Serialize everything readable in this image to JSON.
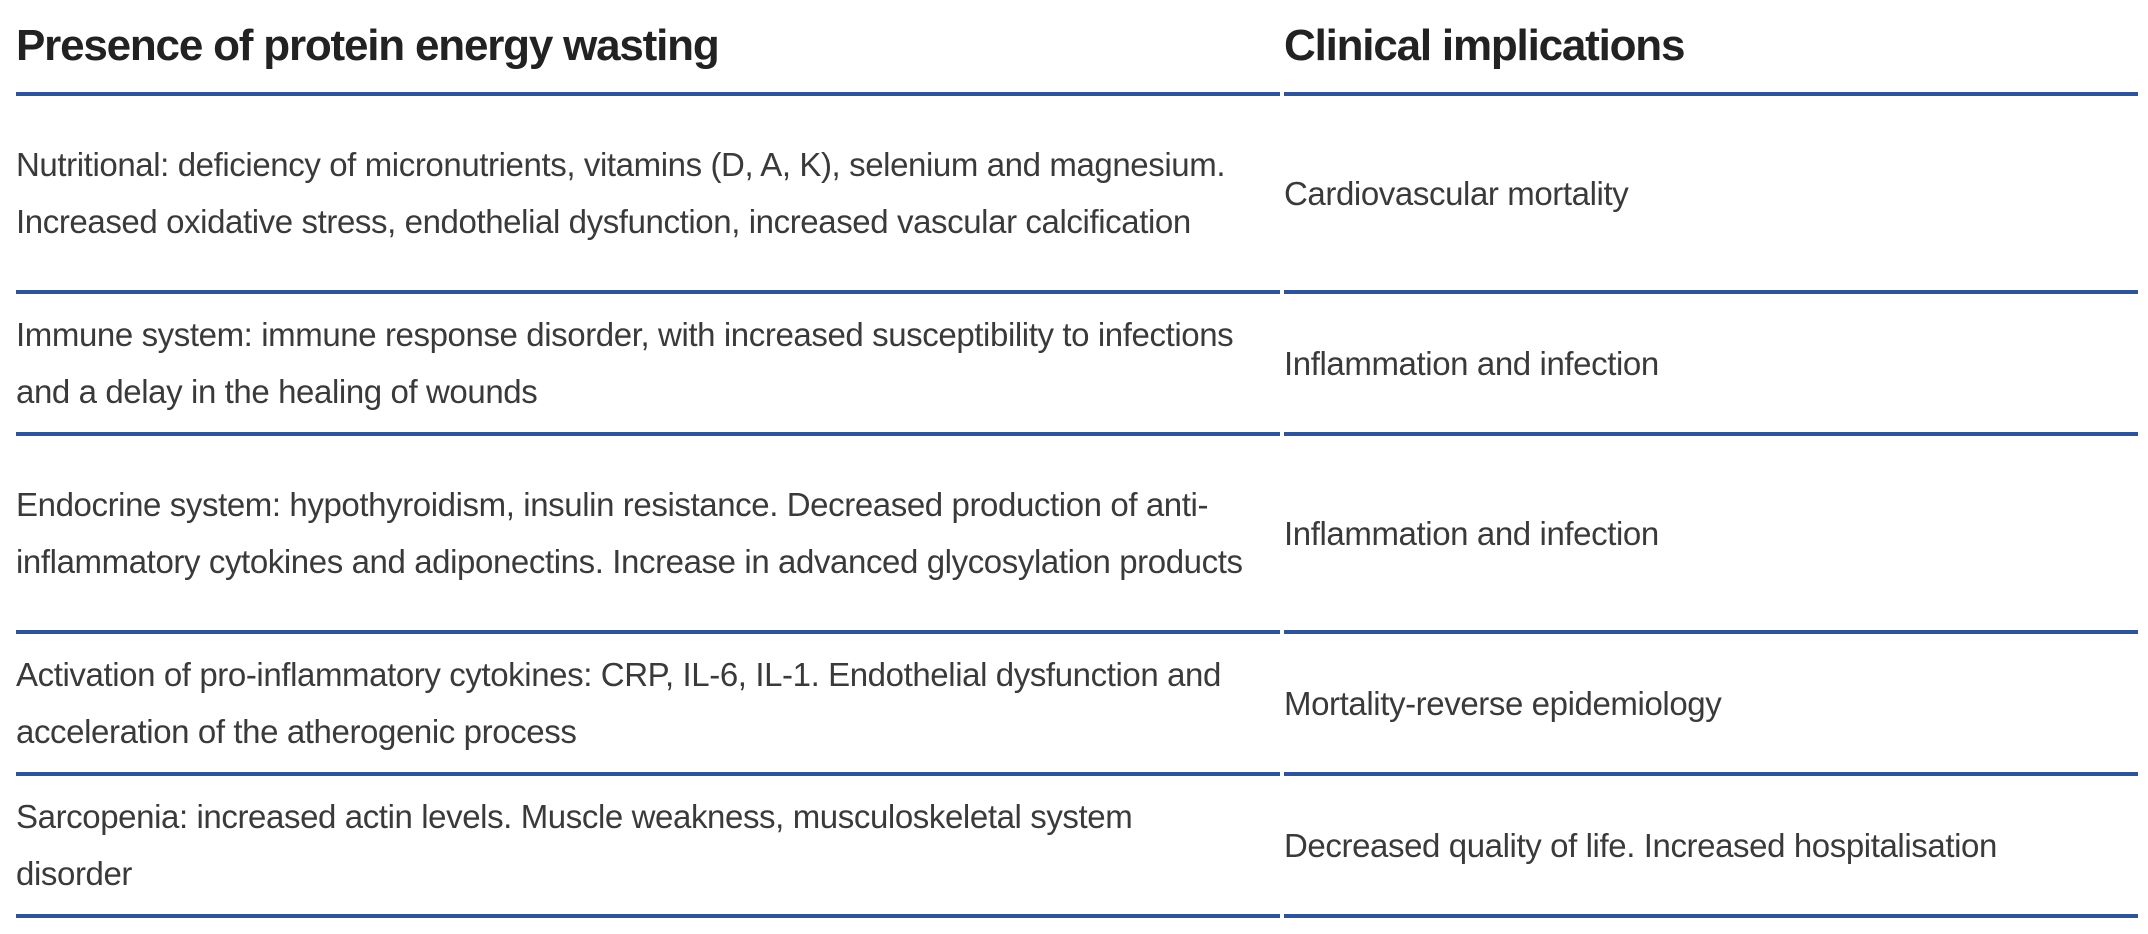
{
  "table": {
    "rule_color": "#2d5499",
    "columns": [
      {
        "header": "Presence of protein energy wasting"
      },
      {
        "header": "Clinical implications"
      }
    ],
    "rows": [
      {
        "presence": "Nutritional: deficiency of micronutrients, vitamins (D, A, K), selenium and magnesium. Increased oxidative stress, endothelial dysfunction, increased vascular calcification",
        "implication": "Cardiovascular mortality"
      },
      {
        "presence": "Immune system: immune response disorder, with increased susceptibility to infections and a delay in the healing of wounds",
        "implication": "Inflammation and infection"
      },
      {
        "presence": "Endocrine system: hypothyroidism, insulin resistance. Decreased production of anti-inflammatory cytokines and adiponectins. Increase in advanced glycosylation products",
        "implication": "Inflammation and infection"
      },
      {
        "presence": "Activation of pro-inflammatory cytokines: CRP, IL-6, IL-1. Endothelial dysfunction and acceleration of the atherogenic process",
        "implication": "Mortality-reverse epidemiology"
      },
      {
        "presence": "Sarcopenia: increased actin levels. Muscle weakness, musculoskeletal system disorder",
        "implication": "Decreased quality of life. Increased hospitalisation"
      }
    ]
  }
}
